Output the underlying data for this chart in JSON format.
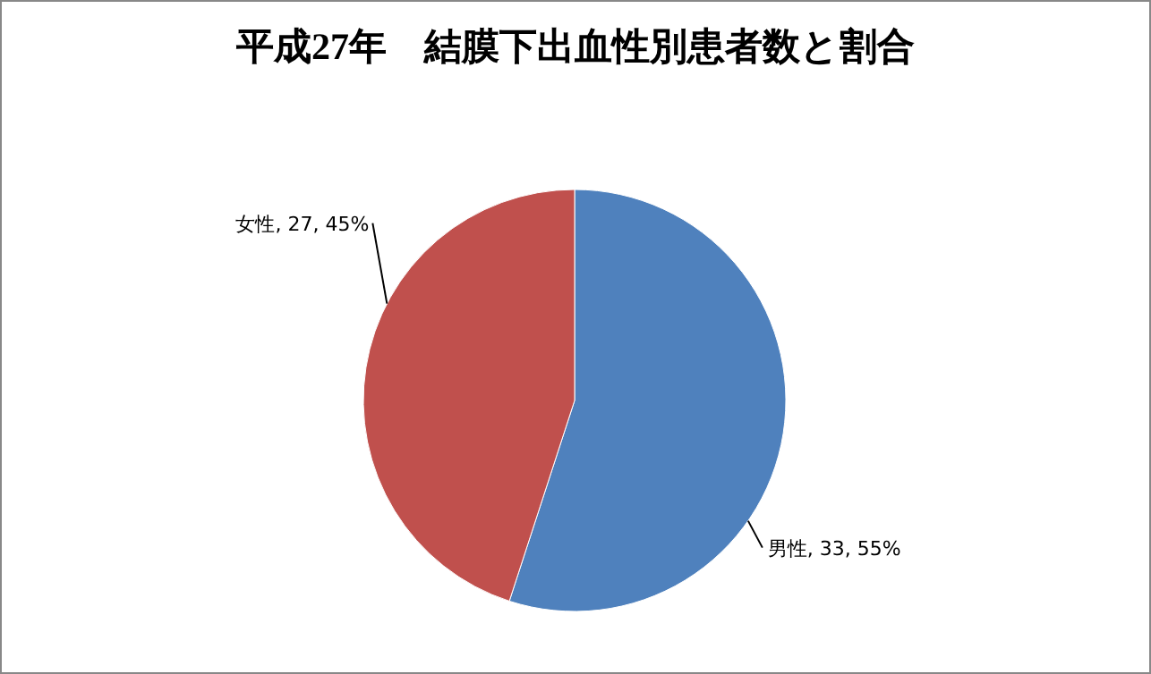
{
  "chart_data": {
    "type": "pie",
    "title": "平成27年　結膜下出血性別患者数と割合",
    "categories": [
      "男性",
      "女性"
    ],
    "values": [
      33,
      27
    ],
    "colors": [
      "#4f81bd",
      "#c0504d"
    ],
    "value_labels": [
      "33, 55%",
      "27, 45%"
    ]
  }
}
